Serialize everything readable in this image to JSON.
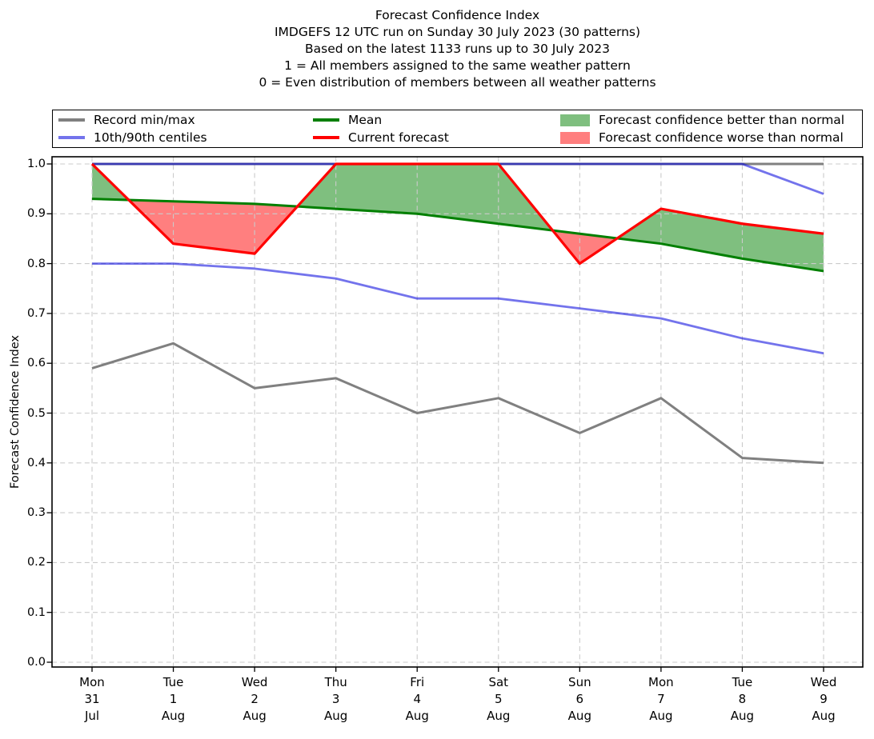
{
  "title_lines": [
    "Forecast Confidence Index",
    "IMDGEFS 12 UTC run on Sunday 30 July 2023 (30 patterns)",
    "Based on the latest 1133 runs up to 30 July 2023",
    "1 = All members assigned to the same weather pattern",
    "0 = Even distribution of members between all weather patterns"
  ],
  "legend": {
    "items": [
      {
        "label": "Record min/max",
        "type": "line",
        "color": "#808080"
      },
      {
        "label": "10th/90th centiles",
        "type": "line",
        "color": "#7373ec"
      },
      {
        "label": "Mean",
        "type": "line",
        "color": "#007f00"
      },
      {
        "label": "Current forecast",
        "type": "line",
        "color": "#ff0000"
      },
      {
        "label": "Forecast confidence better than normal",
        "type": "patch",
        "color": "rgba(0,128,0,0.5)"
      },
      {
        "label": "Forecast confidence worse than normal",
        "type": "patch",
        "color": "rgba(255,0,0,0.5)"
      }
    ],
    "columns": [
      [
        0,
        1
      ],
      [
        2,
        3
      ],
      [
        4,
        5
      ]
    ]
  },
  "chart_data": {
    "type": "line",
    "title": "Forecast Confidence Index",
    "xlabel": "",
    "ylabel": "Forecast Confidence Index",
    "ylim": [
      0.0,
      1.0
    ],
    "grid": true,
    "legend_position": "top, expanded, 3 columns",
    "x_tick_labels": [
      [
        "Mon",
        "31",
        "Jul"
      ],
      [
        "Tue",
        "1",
        "Aug"
      ],
      [
        "Wed",
        "2",
        "Aug"
      ],
      [
        "Thu",
        "3",
        "Aug"
      ],
      [
        "Fri",
        "4",
        "Aug"
      ],
      [
        "Sat",
        "5",
        "Aug"
      ],
      [
        "Sun",
        "6",
        "Aug"
      ],
      [
        "Mon",
        "7",
        "Aug"
      ],
      [
        "Tue",
        "8",
        "Aug"
      ],
      [
        "Wed",
        "9",
        "Aug"
      ]
    ],
    "y_tick_labels": [
      "0.0",
      "0.1",
      "0.2",
      "0.3",
      "0.4",
      "0.5",
      "0.6",
      "0.7",
      "0.8",
      "0.9",
      "1.0"
    ],
    "series": [
      {
        "id": "record_max",
        "name": "Record max",
        "color": "#808080",
        "opacity": 1,
        "width": 3,
        "values": [
          1.0,
          1.0,
          1.0,
          1.0,
          1.0,
          1.0,
          1.0,
          1.0,
          1.0,
          1.0
        ]
      },
      {
        "id": "record_min",
        "name": "Record min",
        "color": "#808080",
        "opacity": 1,
        "width": 3,
        "values": [
          0.59,
          0.64,
          0.55,
          0.57,
          0.5,
          0.53,
          0.46,
          0.53,
          0.41,
          0.4
        ]
      },
      {
        "id": "centile_90",
        "name": "90th centile",
        "color": "#0000dd",
        "opacity": 0.55,
        "width": 2.8,
        "values": [
          1.0,
          1.0,
          1.0,
          1.0,
          1.0,
          1.0,
          1.0,
          1.0,
          1.0,
          0.94
        ]
      },
      {
        "id": "centile_10",
        "name": "10th centile",
        "color": "#0000dd",
        "opacity": 0.55,
        "width": 2.8,
        "values": [
          0.8,
          0.8,
          0.79,
          0.77,
          0.73,
          0.73,
          0.71,
          0.69,
          0.65,
          0.62
        ]
      },
      {
        "id": "mean",
        "name": "Mean",
        "color": "#007f00",
        "opacity": 1,
        "width": 3,
        "values": [
          0.93,
          0.925,
          0.92,
          0.91,
          0.9,
          0.88,
          0.86,
          0.84,
          0.81,
          0.785
        ]
      },
      {
        "id": "current",
        "name": "Current forecast",
        "color": "#ff0000",
        "opacity": 1,
        "width": 3.2,
        "values": [
          1.0,
          0.84,
          0.82,
          1.0,
          1.0,
          1.0,
          0.8,
          0.91,
          0.88,
          0.86
        ]
      }
    ],
    "fills": [
      {
        "name": "Forecast confidence better than normal",
        "between": [
          "current",
          "mean"
        ],
        "where": "current > mean",
        "color": "rgba(0,128,0,0.5)"
      },
      {
        "name": "Forecast confidence worse than normal",
        "between": [
          "current",
          "mean"
        ],
        "where": "current < mean",
        "color": "rgba(255,0,0,0.5)"
      }
    ],
    "style": {
      "grid_color": "#cbcbcb",
      "grid_dash": "6 4.2",
      "frame_color": "#000000",
      "tick_color": "#000000"
    }
  }
}
